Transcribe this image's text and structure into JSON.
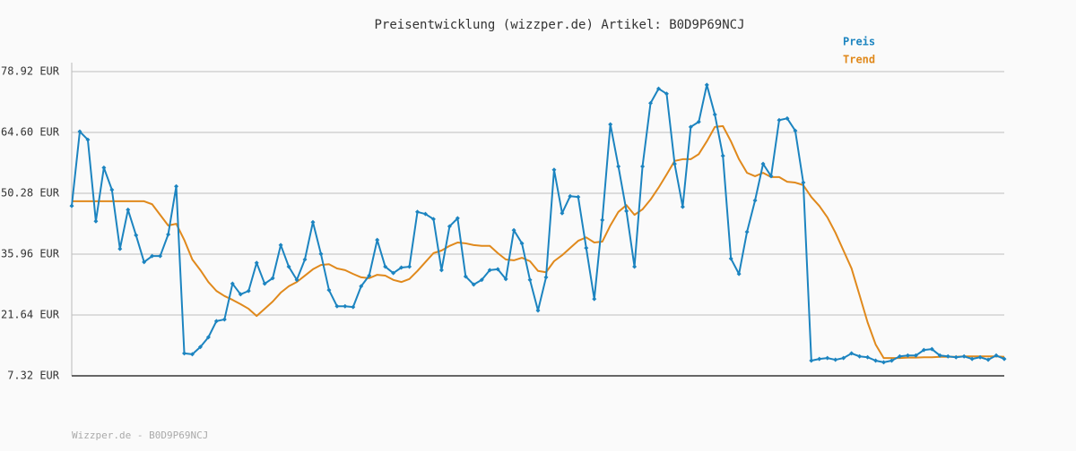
{
  "chart_data": {
    "type": "line",
    "title": "Preisentwicklung (wizzper.de) Artikel: B0D9P69NCJ",
    "footer": "Wizzper.de - B0D9P69NCJ",
    "ylim": [
      7.32,
      78.92
    ],
    "yticks": [
      {
        "value": 7.32,
        "label": "7.32 EUR"
      },
      {
        "value": 21.64,
        "label": "21.64 EUR"
      },
      {
        "value": 35.96,
        "label": "35.96 EUR"
      },
      {
        "value": 50.28,
        "label": "50.28 EUR"
      },
      {
        "value": 64.6,
        "label": "64.60 EUR"
      },
      {
        "value": 78.92,
        "label": "78.92 EUR"
      }
    ],
    "grid": true,
    "legend": "top-right",
    "series": [
      {
        "name": "Preis",
        "color": "#1c84c0",
        "markers": true,
        "values": [
          47.3,
          64.8,
          62.9,
          43.7,
          56.3,
          51.1,
          37.2,
          46.4,
          40.4,
          34.1,
          35.5,
          35.5,
          40.6,
          51.9,
          12.6,
          12.4,
          14.1,
          16.4,
          20.2,
          20.6,
          29.0,
          26.5,
          27.3,
          33.9,
          29.0,
          30.3,
          38.1,
          33.0,
          29.9,
          34.7,
          43.5,
          36.0,
          27.5,
          23.7,
          23.7,
          23.5,
          28.4,
          30.9,
          39.3,
          33.0,
          31.5,
          32.8,
          33.0,
          45.9,
          45.4,
          44.2,
          32.2,
          42.5,
          44.4,
          30.7,
          28.8,
          29.9,
          32.2,
          32.4,
          30.1,
          41.6,
          38.5,
          29.9,
          22.7,
          30.5,
          55.8,
          45.6,
          49.6,
          49.4,
          37.4,
          25.4,
          44.0,
          66.5,
          56.6,
          46.1,
          33.0,
          56.6,
          71.5,
          74.9,
          73.7,
          57.2,
          47.1,
          65.9,
          67.1,
          75.8,
          68.8,
          59.1,
          34.9,
          31.3,
          41.2,
          48.6,
          57.2,
          54.3,
          67.5,
          67.9,
          65.0,
          52.8,
          10.9,
          11.3,
          11.5,
          11.1,
          11.5,
          12.6,
          11.9,
          11.7,
          10.9,
          10.5,
          10.9,
          11.9,
          12.1,
          12.1,
          13.4,
          13.6,
          12.1,
          11.9,
          11.7,
          11.9,
          11.3,
          11.7,
          11.1,
          12.1,
          11.3
        ]
      },
      {
        "name": "Trend",
        "color": "#e0891c",
        "markers": false,
        "values": [
          48.4,
          48.4,
          48.4,
          48.4,
          48.4,
          48.4,
          48.4,
          48.4,
          48.4,
          48.4,
          47.7,
          45.2,
          42.7,
          43.1,
          39.3,
          34.7,
          32.2,
          29.4,
          27.3,
          26.1,
          25.2,
          24.2,
          23.1,
          21.4,
          23.1,
          24.8,
          26.9,
          28.4,
          29.4,
          30.9,
          32.4,
          33.4,
          33.6,
          32.6,
          32.2,
          31.3,
          30.5,
          30.3,
          31.1,
          30.9,
          29.9,
          29.4,
          30.1,
          32.0,
          34.1,
          36.2,
          36.8,
          37.9,
          38.7,
          38.5,
          38.1,
          37.9,
          37.9,
          36.2,
          34.7,
          34.5,
          35.1,
          34.3,
          32.0,
          31.7,
          34.3,
          35.7,
          37.4,
          39.1,
          39.9,
          38.7,
          38.9,
          42.7,
          45.9,
          47.5,
          45.2,
          46.5,
          48.8,
          51.6,
          54.7,
          57.9,
          58.3,
          58.3,
          59.5,
          62.5,
          65.9,
          66.1,
          62.5,
          58.3,
          55.1,
          54.3,
          55.1,
          54.1,
          54.1,
          53.0,
          52.8,
          52.2,
          49.4,
          47.3,
          44.6,
          41.0,
          36.8,
          32.6,
          26.3,
          19.9,
          14.7,
          11.5,
          11.5,
          11.5,
          11.6,
          11.6,
          11.7,
          11.7,
          11.8,
          11.8,
          11.8,
          11.9,
          11.9,
          11.9,
          11.9,
          11.9,
          11.8
        ]
      }
    ]
  }
}
